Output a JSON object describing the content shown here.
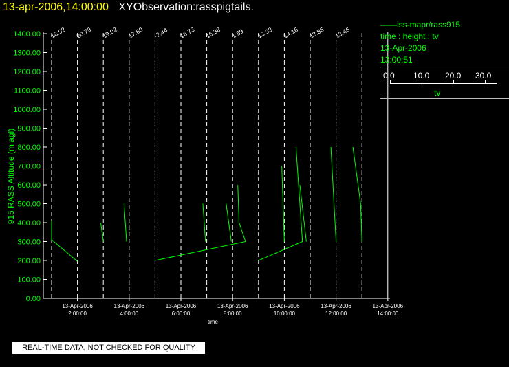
{
  "header": {
    "date": "13-apr-2006,14:00:00",
    "title": "XYObservation:rasspigtails."
  },
  "legend": {
    "series_label": "iss-mapr/rass915",
    "vars": "time : height : tv",
    "date": "13-Apr-2006",
    "time": "13:00:51",
    "scale_ticks": [
      "0.0",
      "10.0",
      "20.0",
      "30.0"
    ],
    "scale_var": "tv"
  },
  "notice": "REAL-TIME DATA, NOT CHECKED FOR QUALITY",
  "colors": {
    "data": "#00ff00",
    "axis_label": "#00ff00",
    "title_date": "#ffff00",
    "background": "#000000"
  },
  "chart_data": {
    "type": "line",
    "xlabel": "time",
    "ylabel": "915 RASS Altitude (m agl)",
    "xlim": [
      1,
      14
    ],
    "ylim": [
      0,
      1400
    ],
    "y_ticks": [
      "0.00",
      "100.00",
      "200.00",
      "300.00",
      "400.00",
      "500.00",
      "600.00",
      "700.00",
      "800.00",
      "900.00",
      "1000.00",
      "1100.00",
      "1200.00",
      "1300.00",
      "1400.00"
    ],
    "x_ticks": [
      {
        "x": 2,
        "date": "13-Apr-2006",
        "time": "2:00:00"
      },
      {
        "x": 4,
        "date": "13-Apr-2006",
        "time": "4:00:00"
      },
      {
        "x": 6,
        "date": "13-Apr-2006",
        "time": "6:00:00"
      },
      {
        "x": 8,
        "date": "13-Apr-2006",
        "time": "8:00:00"
      },
      {
        "x": 10,
        "date": "13-Apr-2006",
        "time": "10:00:00"
      },
      {
        "x": 12,
        "date": "13-Apr-2006",
        "time": "12:00:00"
      },
      {
        "x": 14,
        "date": "13-Apr-2006",
        "time": "14:00:00"
      }
    ],
    "profile_times": [
      1,
      2,
      3,
      4,
      5,
      6,
      7,
      8,
      9,
      10,
      11,
      12,
      13
    ],
    "profile_labels": [
      "18.92",
      "20.79",
      "19.02",
      "17.60",
      "-2.44",
      "16.73",
      "16.38",
      "1.59",
      "13.93",
      "14.16",
      "13.86",
      "13.46"
    ],
    "polyline": [
      [
        1.0,
        410
      ],
      [
        1.0,
        310
      ],
      [
        2.0,
        195
      ],
      [
        2.0,
        195
      ],
      [
        3.0,
        300
      ],
      [
        2.9,
        400
      ],
      [
        3.9,
        300
      ],
      [
        3.8,
        500
      ],
      [
        5.0,
        200
      ],
      [
        6.0,
        250
      ],
      [
        6.0,
        500
      ],
      [
        7.0,
        300
      ],
      [
        6.8,
        500
      ],
      [
        7.5,
        300
      ],
      [
        7.3,
        400
      ],
      [
        7.25,
        600
      ],
      [
        8.0,
        200
      ],
      [
        10.0,
        300
      ],
      [
        9.8,
        800
      ],
      [
        10.0,
        500
      ],
      [
        9.7,
        600
      ],
      [
        11.0,
        300
      ],
      [
        10.8,
        800
      ],
      [
        12.0,
        300
      ],
      [
        11.7,
        800
      ]
    ],
    "segments": [
      [
        [
          1.0,
          410
        ],
        [
          1.0,
          310
        ],
        [
          2.0,
          195
        ]
      ],
      [
        [
          3.0,
          300
        ],
        [
          2.9,
          400
        ]
      ],
      [
        [
          3.9,
          300
        ],
        [
          3.8,
          500
        ]
      ],
      [
        [
          5.0,
          200
        ],
        [
          8.5,
          300
        ],
        [
          8.25,
          400
        ],
        [
          8.2,
          600
        ]
      ],
      [
        [
          6.95,
          300
        ],
        [
          6.85,
          500
        ]
      ],
      [
        [
          7.95,
          300
        ],
        [
          7.75,
          500
        ]
      ],
      [
        [
          9.0,
          200
        ],
        [
          10.7,
          300
        ],
        [
          10.45,
          800
        ]
      ],
      [
        [
          10.0,
          300
        ],
        [
          9.9,
          700
        ]
      ],
      [
        [
          10.85,
          300
        ],
        [
          10.6,
          600
        ]
      ],
      [
        [
          12.0,
          300
        ],
        [
          11.8,
          800
        ]
      ],
      [
        [
          13.0,
          300
        ],
        [
          12.95,
          500
        ],
        [
          12.65,
          800
        ]
      ]
    ]
  }
}
